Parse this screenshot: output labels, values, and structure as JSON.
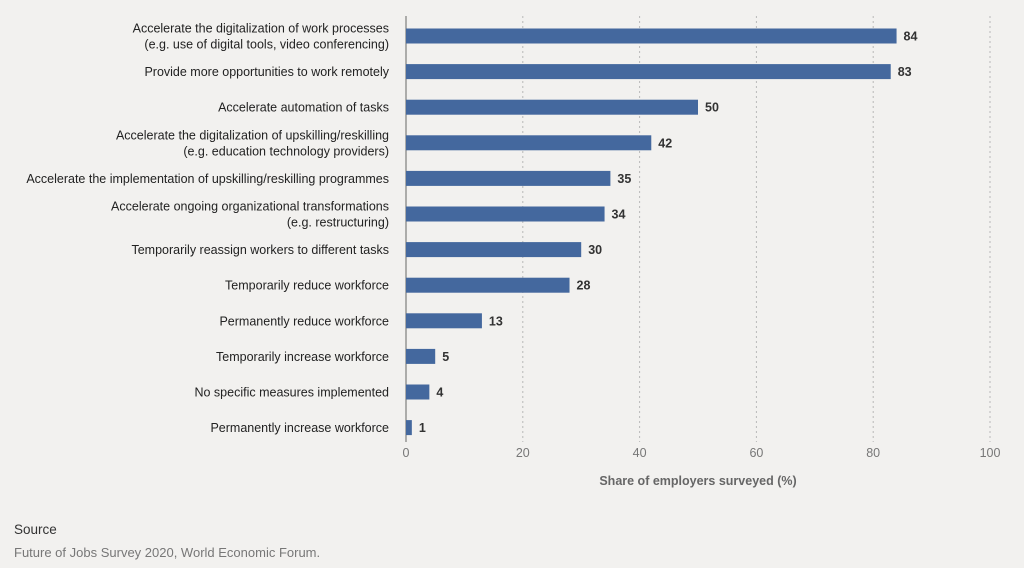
{
  "chart_data": {
    "type": "bar",
    "orientation": "horizontal",
    "categories": [
      [
        "Accelerate the digitalization of work processes",
        "(e.g. use of digital tools, video conferencing)"
      ],
      [
        "Provide more opportunities to work remotely"
      ],
      [
        "Accelerate automation of tasks"
      ],
      [
        "Accelerate the digitalization of upskilling/reskilling",
        "(e.g. education technology providers)"
      ],
      [
        "Accelerate the implementation of upskilling/reskilling programmes"
      ],
      [
        "Accelerate ongoing organizational transformations",
        "(e.g. restructuring)"
      ],
      [
        "Temporarily reassign workers to different tasks"
      ],
      [
        "Temporarily reduce workforce"
      ],
      [
        "Permanently reduce workforce"
      ],
      [
        "Temporarily increase workforce"
      ],
      [
        "No specific measures implemented"
      ],
      [
        "Permanently increase workforce"
      ]
    ],
    "values": [
      84,
      83,
      50,
      42,
      35,
      34,
      30,
      28,
      13,
      5,
      4,
      1
    ],
    "xlabel": "Share of employers surveyed (%)",
    "xlim": [
      0,
      100
    ],
    "xticks": [
      0,
      20,
      40,
      60,
      80,
      100
    ],
    "grid": "vertical dotted",
    "bar_color": "#44689e"
  },
  "source": {
    "title": "Source",
    "text": "Future of Jobs Survey 2020, World Economic Forum."
  }
}
